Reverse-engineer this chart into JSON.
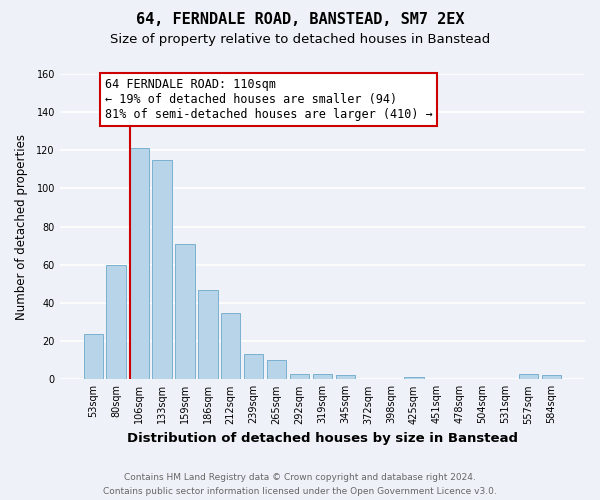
{
  "title": "64, FERNDALE ROAD, BANSTEAD, SM7 2EX",
  "subtitle": "Size of property relative to detached houses in Banstead",
  "xlabel": "Distribution of detached houses by size in Banstead",
  "ylabel": "Number of detached properties",
  "bar_labels": [
    "53sqm",
    "80sqm",
    "106sqm",
    "133sqm",
    "159sqm",
    "186sqm",
    "212sqm",
    "239sqm",
    "265sqm",
    "292sqm",
    "319sqm",
    "345sqm",
    "372sqm",
    "398sqm",
    "425sqm",
    "451sqm",
    "478sqm",
    "504sqm",
    "531sqm",
    "557sqm",
    "584sqm"
  ],
  "bar_values": [
    24,
    60,
    121,
    115,
    71,
    47,
    35,
    13,
    10,
    3,
    3,
    2,
    0,
    0,
    1,
    0,
    0,
    0,
    0,
    3,
    2
  ],
  "bar_color": "#b8d4e8",
  "bar_edge_color": "#7ab0d0",
  "highlight_line_index": 2,
  "highlight_color": "#cc0000",
  "ylim": [
    0,
    160
  ],
  "yticks": [
    0,
    20,
    40,
    60,
    80,
    100,
    120,
    140,
    160
  ],
  "annotation_text": "64 FERNDALE ROAD: 110sqm\n← 19% of detached houses are smaller (94)\n81% of semi-detached houses are larger (410) →",
  "annotation_box_color": "#ffffff",
  "annotation_box_edge": "#cc0000",
  "footer_line1": "Contains HM Land Registry data © Crown copyright and database right 2024.",
  "footer_line2": "Contains public sector information licensed under the Open Government Licence v3.0.",
  "background_color": "#eef2f8",
  "grid_color": "#ffffff",
  "title_fontsize": 11,
  "subtitle_fontsize": 9.5,
  "xlabel_fontsize": 9.5,
  "ylabel_fontsize": 8.5,
  "tick_fontsize": 7,
  "annotation_fontsize": 8.5,
  "footer_fontsize": 6.5
}
